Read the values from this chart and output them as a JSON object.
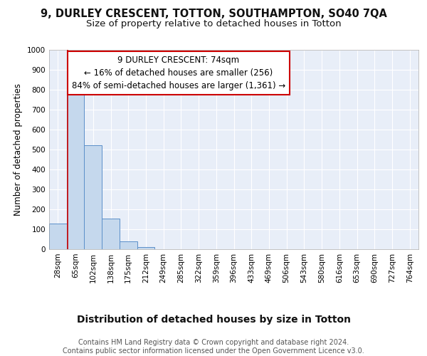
{
  "title1": "9, DURLEY CRESCENT, TOTTON, SOUTHAMPTON, SO40 7QA",
  "title2": "Size of property relative to detached houses in Totton",
  "xlabel": "Distribution of detached houses by size in Totton",
  "ylabel": "Number of detached properties",
  "bar_labels": [
    "28sqm",
    "65sqm",
    "102sqm",
    "138sqm",
    "175sqm",
    "212sqm",
    "249sqm",
    "285sqm",
    "322sqm",
    "359sqm",
    "396sqm",
    "433sqm",
    "469sqm",
    "506sqm",
    "543sqm",
    "580sqm",
    "616sqm",
    "653sqm",
    "690sqm",
    "727sqm",
    "764sqm"
  ],
  "bar_values": [
    130,
    775,
    520,
    155,
    40,
    12,
    0,
    0,
    0,
    0,
    0,
    0,
    0,
    0,
    0,
    0,
    0,
    0,
    0,
    0,
    0
  ],
  "bar_color": "#c5d8ed",
  "bar_edgecolor": "#5b8fc9",
  "bar_linewidth": 0.7,
  "vline_x": 0.57,
  "vline_color": "#cc0000",
  "annotation_text": "9 DURLEY CRESCENT: 74sqm\n← 16% of detached houses are smaller (256)\n84% of semi-detached houses are larger (1,361) →",
  "annotation_box_color": "white",
  "annotation_box_edgecolor": "#cc0000",
  "ylim": [
    0,
    1000
  ],
  "yticks": [
    0,
    100,
    200,
    300,
    400,
    500,
    600,
    700,
    800,
    900,
    1000
  ],
  "fig_bg_color": "#ffffff",
  "plot_bg_color": "#e8eef8",
  "grid_color": "#ffffff",
  "footer_text": "Contains HM Land Registry data © Crown copyright and database right 2024.\nContains public sector information licensed under the Open Government Licence v3.0.",
  "title1_fontsize": 10.5,
  "title2_fontsize": 9.5,
  "annotation_fontsize": 8.5,
  "xlabel_fontsize": 10,
  "ylabel_fontsize": 8.5,
  "footer_fontsize": 7,
  "tick_fontsize": 7.5
}
